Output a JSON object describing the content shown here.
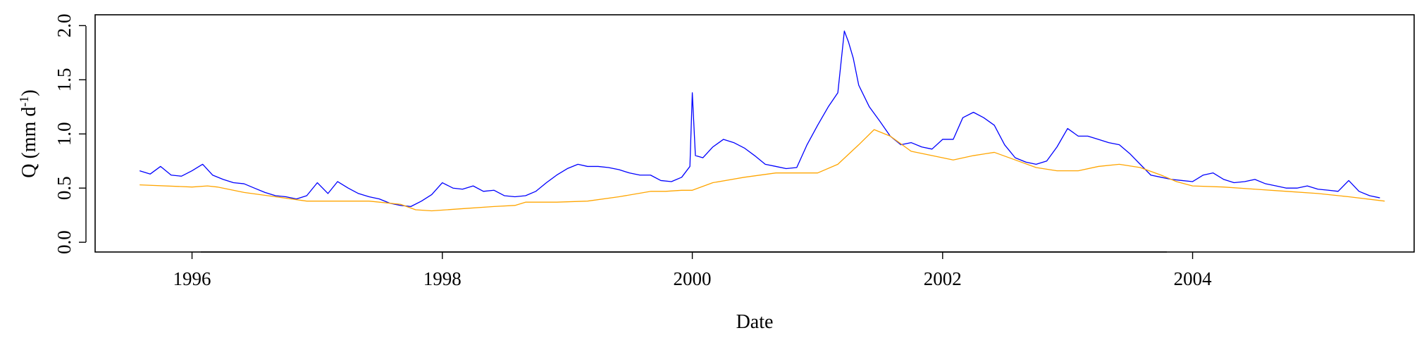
{
  "chart_data": {
    "type": "line",
    "title": "",
    "xlabel": "Date",
    "ylabel_parts": {
      "main": "Q (mm d",
      "sup": "-1",
      "close": ")"
    },
    "xlim": [
      "1995-03-24",
      "2005-10-09"
    ],
    "ylim": [
      -0.09,
      2.1
    ],
    "x_ticks": [
      "1996-01-01",
      "1998-01-01",
      "2000-01-01",
      "2002-01-01",
      "2004-01-01"
    ],
    "x_tick_labels": [
      "1996",
      "1998",
      "2000",
      "2002",
      "2004"
    ],
    "y_ticks": [
      0.0,
      0.5,
      1.0,
      1.5,
      2.0
    ],
    "y_tick_labels": [
      "0.0",
      "0.5",
      "1.0",
      "1.5",
      "2.0"
    ],
    "grid": false,
    "legend": "none",
    "series": [
      {
        "color": "#0000ff",
        "x": [
          "1995-08-01",
          "1995-09-01",
          "1995-10-01",
          "1995-11-01",
          "1995-12-01",
          "1996-01-01",
          "1996-02-01",
          "1996-03-01",
          "1996-04-01",
          "1996-05-01",
          "1996-06-01",
          "1996-07-01",
          "1996-08-01",
          "1996-09-01",
          "1996-10-01",
          "1996-11-01",
          "1996-12-01",
          "1997-01-01",
          "1997-02-01",
          "1997-03-01",
          "1997-04-01",
          "1997-05-01",
          "1997-06-01",
          "1997-07-01",
          "1997-08-01",
          "1997-09-01",
          "1997-10-01",
          "1997-11-01",
          "1997-12-01",
          "1998-01-01",
          "1998-02-01",
          "1998-03-01",
          "1998-04-01",
          "1998-05-01",
          "1998-06-01",
          "1998-07-01",
          "1998-08-01",
          "1998-09-01",
          "1998-10-01",
          "1998-11-01",
          "1998-12-01",
          "1999-01-01",
          "1999-02-01",
          "1999-03-01",
          "1999-04-01",
          "1999-05-01",
          "1999-06-01",
          "1999-07-01",
          "1999-08-01",
          "1999-09-01",
          "1999-10-01",
          "1999-11-01",
          "1999-12-01",
          "1999-12-25",
          "2000-01-01",
          "2000-01-10",
          "2000-02-01",
          "2000-03-01",
          "2000-04-01",
          "2000-05-01",
          "2000-06-01",
          "2000-07-01",
          "2000-08-01",
          "2000-09-01",
          "2000-10-01",
          "2000-11-01",
          "2000-12-01",
          "2001-01-01",
          "2001-02-01",
          "2001-03-01",
          "2001-03-20",
          "2001-04-01",
          "2001-04-15",
          "2001-05-01",
          "2001-06-01",
          "2001-07-01",
          "2001-08-01",
          "2001-09-01",
          "2001-10-01",
          "2001-11-01",
          "2001-12-01",
          "2002-01-01",
          "2002-02-01",
          "2002-03-01",
          "2002-04-01",
          "2002-05-01",
          "2002-06-01",
          "2002-07-01",
          "2002-08-01",
          "2002-09-01",
          "2002-10-01",
          "2002-11-01",
          "2002-12-01",
          "2003-01-01",
          "2003-02-01",
          "2003-03-01",
          "2003-04-01",
          "2003-05-01",
          "2003-06-01",
          "2003-07-01",
          "2003-08-01",
          "2003-09-01",
          "2003-10-01",
          "2003-11-01",
          "2003-12-01",
          "2004-01-01",
          "2004-02-01",
          "2004-03-01",
          "2004-04-01",
          "2004-05-01",
          "2004-06-01",
          "2004-07-01",
          "2004-08-01",
          "2004-09-01",
          "2004-10-01",
          "2004-11-01",
          "2004-12-01",
          "2005-01-01",
          "2005-02-01",
          "2005-03-01",
          "2005-04-01",
          "2005-05-01",
          "2005-06-01",
          "2005-07-01"
        ],
        "values": [
          0.66,
          0.63,
          0.7,
          0.62,
          0.61,
          0.66,
          0.72,
          0.62,
          0.58,
          0.55,
          0.54,
          0.5,
          0.46,
          0.43,
          0.42,
          0.4,
          0.43,
          0.55,
          0.45,
          0.56,
          0.5,
          0.45,
          0.42,
          0.4,
          0.36,
          0.34,
          0.33,
          0.38,
          0.44,
          0.55,
          0.5,
          0.49,
          0.52,
          0.47,
          0.48,
          0.43,
          0.42,
          0.43,
          0.47,
          0.55,
          0.62,
          0.68,
          0.72,
          0.7,
          0.7,
          0.69,
          0.67,
          0.64,
          0.62,
          0.62,
          0.57,
          0.56,
          0.6,
          0.7,
          1.38,
          0.8,
          0.78,
          0.88,
          0.95,
          0.92,
          0.87,
          0.8,
          0.72,
          0.7,
          0.68,
          0.69,
          0.9,
          1.08,
          1.25,
          1.38,
          1.95,
          1.85,
          1.7,
          1.45,
          1.25,
          1.12,
          0.98,
          0.9,
          0.92,
          0.88,
          0.86,
          0.95,
          0.95,
          1.15,
          1.2,
          1.15,
          1.08,
          0.9,
          0.78,
          0.74,
          0.72,
          0.75,
          0.88,
          1.05,
          0.98,
          0.98,
          0.95,
          0.92,
          0.9,
          0.82,
          0.72,
          0.62,
          0.6,
          0.58,
          0.57,
          0.56,
          0.62,
          0.64,
          0.58,
          0.55,
          0.56,
          0.58,
          0.54,
          0.52,
          0.5,
          0.5,
          0.52,
          0.49,
          0.48,
          0.47,
          0.57,
          0.47,
          0.43,
          0.41
        ]
      },
      {
        "color": "#ffa500",
        "x": [
          "1995-08-01",
          "1996-01-01",
          "1996-02-15",
          "1996-03-15",
          "1996-06-01",
          "1996-09-01",
          "1996-12-01",
          "1997-03-01",
          "1997-06-01",
          "1997-09-01",
          "1997-10-15",
          "1997-12-01",
          "1998-03-01",
          "1998-06-01",
          "1998-08-01",
          "1998-09-01",
          "1998-12-01",
          "1999-03-01",
          "1999-06-01",
          "1999-09-01",
          "1999-10-15",
          "1999-12-01",
          "2000-01-01",
          "2000-03-01",
          "2000-06-01",
          "2000-09-01",
          "2000-11-01",
          "2001-01-01",
          "2001-03-01",
          "2001-05-01",
          "2001-06-15",
          "2001-08-01",
          "2001-10-01",
          "2001-12-01",
          "2002-02-01",
          "2002-04-01",
          "2002-06-01",
          "2002-08-01",
          "2002-10-01",
          "2002-12-01",
          "2003-02-01",
          "2003-04-01",
          "2003-06-01",
          "2003-08-01",
          "2003-10-01",
          "2003-11-15",
          "2004-01-01",
          "2004-04-01",
          "2004-07-01",
          "2004-10-01",
          "2005-01-01",
          "2005-04-01",
          "2005-07-15"
        ],
        "values": [
          0.53,
          0.51,
          0.52,
          0.51,
          0.46,
          0.42,
          0.38,
          0.38,
          0.38,
          0.35,
          0.3,
          0.29,
          0.31,
          0.33,
          0.34,
          0.37,
          0.37,
          0.38,
          0.42,
          0.47,
          0.47,
          0.48,
          0.48,
          0.55,
          0.6,
          0.64,
          0.64,
          0.64,
          0.72,
          0.9,
          1.04,
          0.98,
          0.84,
          0.8,
          0.76,
          0.8,
          0.83,
          0.76,
          0.69,
          0.66,
          0.66,
          0.7,
          0.72,
          0.69,
          0.62,
          0.56,
          0.52,
          0.51,
          0.49,
          0.47,
          0.45,
          0.42,
          0.38
        ]
      }
    ]
  }
}
